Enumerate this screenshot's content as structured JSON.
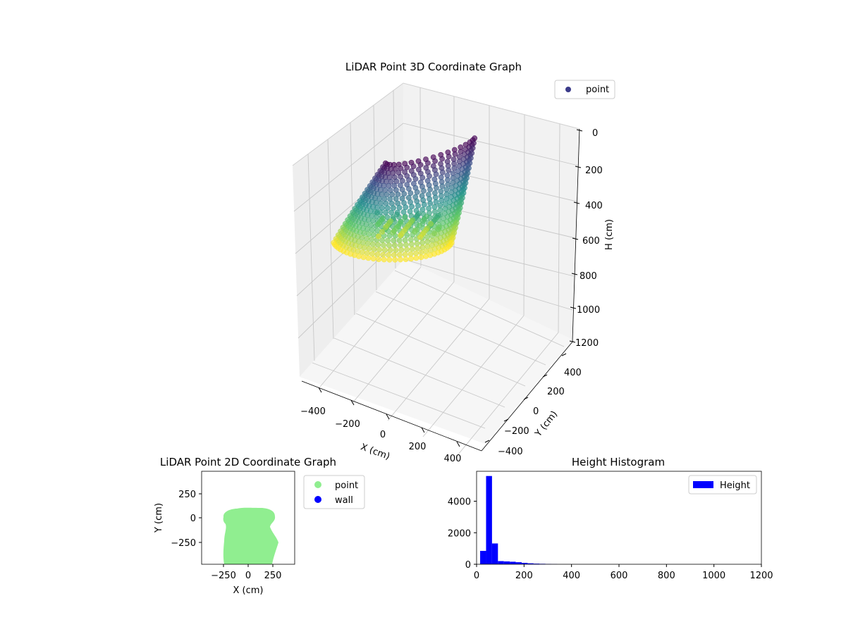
{
  "chart_data": [
    {
      "type": "scatter",
      "projection": "3d",
      "title": "LiDAR Point 3D Coordinate Graph",
      "xlabel": "X (cm)",
      "ylabel": "Y (cm)",
      "zlabel": "H (cm)",
      "xlim": [
        -500,
        500
      ],
      "ylim": [
        -500,
        500
      ],
      "zlim": [
        0,
        1200
      ],
      "z_inverted": true,
      "xticks": [
        "−400",
        "−200",
        "0",
        "200",
        "400"
      ],
      "yticks": [
        "−400",
        "−200",
        "0",
        "200",
        "400"
      ],
      "zticks": [
        "0",
        "200",
        "400",
        "600",
        "800",
        "1000",
        "1200"
      ],
      "colormap": "viridis",
      "grid": true,
      "legend": {
        "position": "upper-right",
        "entries": [
          {
            "label": "point",
            "color": "#3b3b8a"
          }
        ]
      },
      "description_points": "dome-shaped point cloud; heights roughly 40–600 cm, colour by height"
    },
    {
      "type": "scatter",
      "title": "LiDAR Point 2D Coordinate Graph",
      "xlabel": "X (cm)",
      "ylabel": "Y (cm)",
      "xlim": [
        -480,
        480
      ],
      "ylim": [
        -480,
        480
      ],
      "xticks": [
        "−250",
        "0",
        "250"
      ],
      "yticks": [
        "250",
        "0",
        "−250"
      ],
      "series": [
        {
          "name": "point",
          "color": "#90ee90"
        },
        {
          "name": "wall",
          "color": "#0000ff"
        }
      ],
      "legend": {
        "position": "outside-right"
      }
    },
    {
      "type": "bar",
      "title": "Height Histogram",
      "xlim": [
        0,
        1200
      ],
      "ylim": [
        0,
        5900
      ],
      "xticks": [
        "0",
        "200",
        "400",
        "600",
        "800",
        "1000",
        "1200"
      ],
      "yticks": [
        "0",
        "2000",
        "4000"
      ],
      "bin_width": 25,
      "bin_starts": [
        15,
        40,
        65,
        90,
        115,
        140,
        165,
        190,
        215,
        240,
        265,
        290,
        315
      ],
      "values": [
        850,
        5600,
        1320,
        200,
        180,
        160,
        130,
        90,
        60,
        40,
        30,
        20,
        10
      ],
      "color": "#0000ff",
      "legend": {
        "position": "upper-right",
        "entries": [
          {
            "label": "Height",
            "color": "#0000ff"
          }
        ]
      }
    }
  ]
}
